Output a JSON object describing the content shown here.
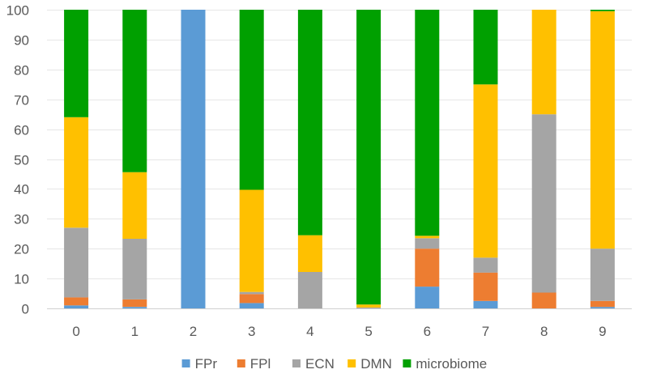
{
  "chart_data": {
    "type": "bar",
    "stacked": true,
    "title": "",
    "xlabel": "",
    "ylabel": "",
    "ylim": [
      0,
      100
    ],
    "yticks": [
      0,
      10,
      20,
      30,
      40,
      50,
      60,
      70,
      80,
      90,
      100
    ],
    "categories": [
      "0",
      "1",
      "2",
      "3",
      "4",
      "5",
      "6",
      "7",
      "8",
      "9"
    ],
    "grid": true,
    "legend_position": "bottom",
    "series": [
      {
        "name": "FPr",
        "color": "#5B9BD5",
        "values": [
          1,
          0.5,
          100,
          1.8,
          0,
          0,
          7.3,
          2.5,
          0,
          0.5
        ]
      },
      {
        "name": "FPl",
        "color": "#ED7D31",
        "values": [
          2.7,
          2.5,
          0,
          3,
          0,
          0,
          12.7,
          9.5,
          5.3,
          2
        ]
      },
      {
        "name": "ECN",
        "color": "#A5A5A5",
        "values": [
          23.3,
          20.3,
          0,
          0.7,
          12.2,
          0.3,
          3.5,
          5,
          59.7,
          17.5
        ]
      },
      {
        "name": "DMN",
        "color": "#FFC000",
        "values": [
          37,
          22.3,
          0,
          34.2,
          12.3,
          1,
          0.8,
          58,
          35,
          79.5
        ]
      },
      {
        "name": "microbiome",
        "color": "#00A000",
        "values": [
          36,
          54.4,
          0,
          60.3,
          75.5,
          98.7,
          75.7,
          25,
          0,
          0.5
        ]
      }
    ]
  }
}
